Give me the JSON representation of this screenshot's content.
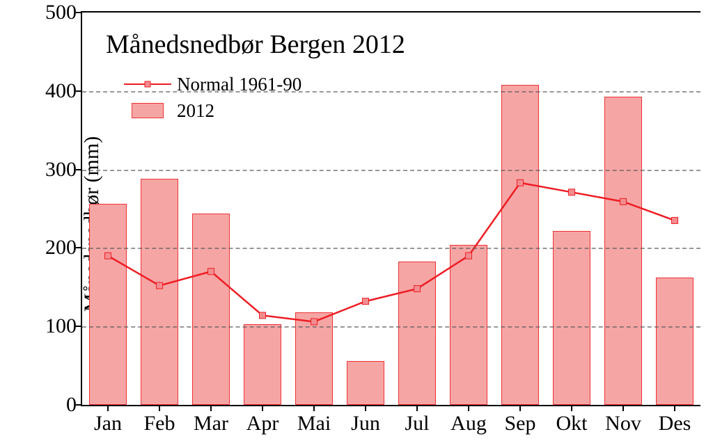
{
  "chart": {
    "title": "Månedsnedbør Bergen 2012",
    "ylabel": "Månedsnedbør (mm)",
    "ylim": [
      0,
      500
    ],
    "ytick_step": 100,
    "categories": [
      "Jan",
      "Feb",
      "Mar",
      "Apr",
      "Mai",
      "Jun",
      "Jul",
      "Aug",
      "Sep",
      "Okt",
      "Nov",
      "Des"
    ],
    "bar_values": [
      256,
      288,
      244,
      103,
      118,
      56,
      183,
      204,
      408,
      222,
      393,
      162
    ],
    "line_values": [
      190,
      152,
      170,
      114,
      106,
      132,
      148,
      190,
      283,
      271,
      259,
      235
    ],
    "bar_fill": "#f6a5a5",
    "bar_border": "#ee3233",
    "line_color": "#ee1d24",
    "marker_fill": "#f28c8f",
    "marker_border": "#ee1d24",
    "grid_color": "#585858",
    "axis_color": "#000000",
    "background_color": "#ffffff",
    "bar_width_ratio": 0.72,
    "legend": {
      "line_label": "Normal 1961-90",
      "bar_label": "2012"
    },
    "fontsizes": {
      "title": 38,
      "axis_label": 30,
      "tick": 30,
      "legend": 27
    }
  }
}
